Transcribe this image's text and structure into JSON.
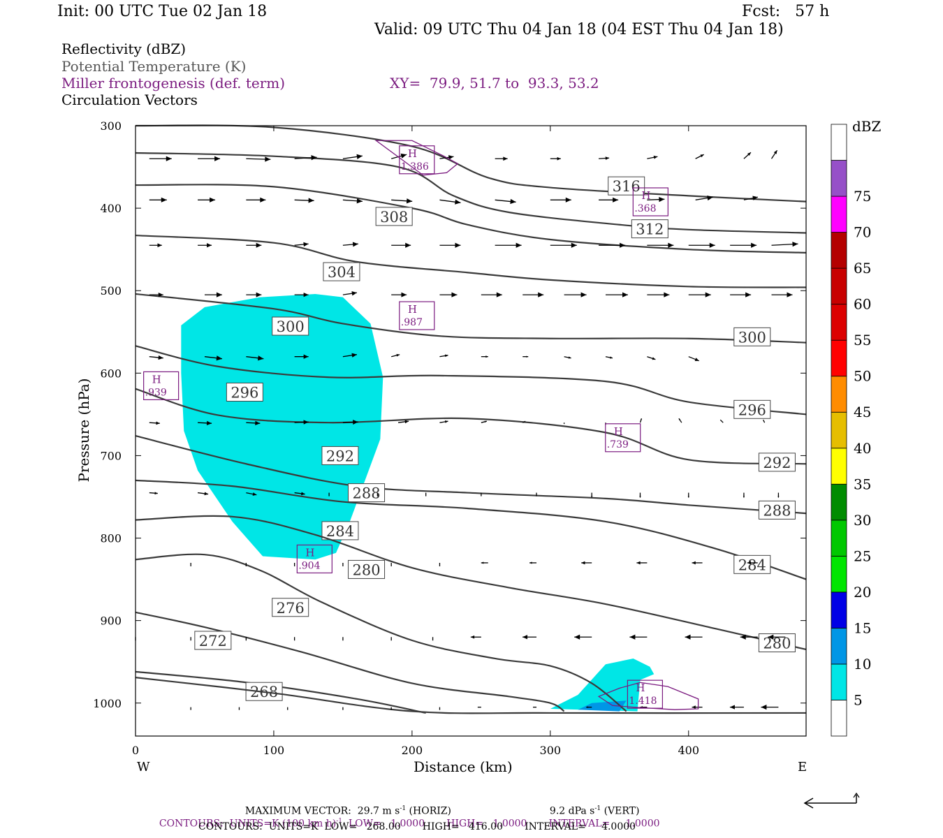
{
  "header": {
    "init": "Init: 00 UTC Tue 02 Jan 18",
    "fcst": "Fcst:   57 h",
    "valid": "Valid: 09 UTC Thu 04 Jan 18 (04 EST Thu 04 Jan 18)"
  },
  "fields": {
    "reflectivity": "Reflectivity (dBZ)",
    "theta": "Potential Temperature (K)",
    "frontogenesis": "Miller frontogenesis (def. term)",
    "xy": "XY=  79.9, 51.7 to  93.3, 53.2",
    "vectors": "Circulation Vectors"
  },
  "colors": {
    "theta_line": "#3a3a3a",
    "fronto": "#7a1a7f",
    "refl_5": "#00e6e6",
    "refl_10": "#0096e6"
  },
  "chart_data": {
    "type": "cross-section",
    "xlabel": "Distance (km)",
    "ylabel": "Pressure (hPa)",
    "x_ticks": [
      0,
      100,
      200,
      300,
      400
    ],
    "y_ticks": [
      300,
      400,
      500,
      600,
      700,
      800,
      900,
      1000
    ],
    "xlim": [
      0,
      485
    ],
    "ylim": [
      1040,
      300
    ],
    "x_end_labels": {
      "left": "W",
      "right": "E"
    },
    "colorbar": {
      "title": "dBZ",
      "levels": [
        5,
        10,
        15,
        20,
        25,
        30,
        35,
        40,
        45,
        50,
        55,
        60,
        65,
        70,
        75
      ],
      "colors": [
        "#00e6e6",
        "#0096e6",
        "#0000e6",
        "#00e600",
        "#00c800",
        "#008c00",
        "#ffff00",
        "#e6be00",
        "#ff8c00",
        "#ff0000",
        "#dc0000",
        "#c80000",
        "#b40000",
        "#ff00ff",
        "#9650c8"
      ],
      "top_color": "#ffffff",
      "bottom_color": "#ffffff"
    },
    "theta_contours": [
      {
        "label": "316",
        "label_at": [
          355,
          373
        ],
        "points": [
          [
            0,
            300
          ],
          [
            100,
            302
          ],
          [
            200,
            325
          ],
          [
            255,
            363
          ],
          [
            300,
            375
          ],
          [
            400,
            385
          ],
          [
            485,
            392
          ]
        ]
      },
      {
        "label": "312",
        "label_at": [
          372,
          425
        ],
        "points": [
          [
            0,
            333
          ],
          [
            100,
            337
          ],
          [
            190,
            350
          ],
          [
            230,
            385
          ],
          [
            270,
            405
          ],
          [
            350,
            420
          ],
          [
            400,
            426
          ],
          [
            485,
            430
          ]
        ]
      },
      {
        "label": "308",
        "label_at": [
          187,
          410
        ],
        "points": [
          [
            0,
            372
          ],
          [
            100,
            374
          ],
          [
            200,
            400
          ],
          [
            240,
            420
          ],
          [
            300,
            438
          ],
          [
            400,
            450
          ],
          [
            485,
            454
          ]
        ]
      },
      {
        "label": "304",
        "label_at": [
          149,
          477
        ],
        "points": [
          [
            0,
            433
          ],
          [
            100,
            442
          ],
          [
            160,
            465
          ],
          [
            240,
            478
          ],
          [
            300,
            487
          ],
          [
            400,
            495
          ],
          [
            485,
            496
          ]
        ]
      },
      {
        "label": "300",
        "label_at": [
          112,
          543
        ],
        "labels_extra": [
          [
            446,
            556
          ]
        ],
        "points": [
          [
            0,
            504
          ],
          [
            100,
            522
          ],
          [
            150,
            540
          ],
          [
            220,
            555
          ],
          [
            300,
            558
          ],
          [
            400,
            558
          ],
          [
            485,
            563
          ]
        ]
      },
      {
        "label": "296",
        "label_at": [
          79,
          623
        ],
        "labels_extra": [
          [
            446,
            644
          ]
        ],
        "points": [
          [
            0,
            567
          ],
          [
            60,
            592
          ],
          [
            140,
            605
          ],
          [
            220,
            603
          ],
          [
            340,
            610
          ],
          [
            400,
            635
          ],
          [
            485,
            650
          ]
        ]
      },
      {
        "label": "292",
        "label_at": [
          148,
          700
        ],
        "labels_extra": [
          [
            464,
            708
          ]
        ],
        "points": [
          [
            0,
            619
          ],
          [
            60,
            651
          ],
          [
            140,
            660
          ],
          [
            240,
            655
          ],
          [
            340,
            672
          ],
          [
            400,
            705
          ],
          [
            485,
            710
          ]
        ]
      },
      {
        "label": "288",
        "label_at": [
          167,
          745
        ],
        "labels_extra": [
          [
            464,
            766
          ]
        ],
        "points": [
          [
            0,
            676
          ],
          [
            80,
            710
          ],
          [
            160,
            737
          ],
          [
            240,
            745
          ],
          [
            340,
            752
          ],
          [
            400,
            760
          ],
          [
            485,
            770
          ]
        ]
      },
      {
        "label": "284",
        "label_at": [
          148,
          791
        ],
        "labels_extra": [
          [
            446,
            832
          ]
        ],
        "points": [
          [
            0,
            730
          ],
          [
            70,
            737
          ],
          [
            150,
            756
          ],
          [
            240,
            764
          ],
          [
            340,
            780
          ],
          [
            420,
            813
          ],
          [
            485,
            850
          ]
        ]
      },
      {
        "label": "280",
        "label_at": [
          167,
          838
        ],
        "labels_extra": [
          [
            464,
            927
          ]
        ],
        "points": [
          [
            0,
            778
          ],
          [
            70,
            774
          ],
          [
            130,
            796
          ],
          [
            200,
            836
          ],
          [
            270,
            860
          ],
          [
            340,
            880
          ],
          [
            420,
            910
          ],
          [
            485,
            935
          ]
        ]
      },
      {
        "label": "276",
        "label_at": [
          112,
          884
        ],
        "points": [
          [
            0,
            826
          ],
          [
            50,
            820
          ],
          [
            90,
            839
          ],
          [
            135,
            878
          ],
          [
            200,
            924
          ],
          [
            260,
            946
          ],
          [
            300,
            955
          ],
          [
            330,
            976
          ],
          [
            355,
            1010
          ]
        ]
      },
      {
        "label": "272",
        "label_at": [
          56,
          924
        ],
        "points": [
          [
            0,
            890
          ],
          [
            50,
            908
          ],
          [
            120,
            938
          ],
          [
            200,
            976
          ],
          [
            270,
            992
          ],
          [
            300,
            1000
          ],
          [
            310,
            1010
          ]
        ]
      },
      {
        "label": "268",
        "label_at": [
          93,
          986
        ],
        "points": [
          [
            0,
            962
          ],
          [
            80,
            975
          ],
          [
            160,
            995
          ],
          [
            210,
            1012
          ]
        ]
      },
      {
        "label": "",
        "points": [
          [
            0,
            969
          ],
          [
            100,
            988
          ],
          [
            200,
            1010
          ],
          [
            300,
            1012
          ],
          [
            485,
            1012
          ]
        ]
      }
    ],
    "reflectivity_areas": [
      {
        "level": 5,
        "points": [
          [
            33,
            542
          ],
          [
            50,
            520
          ],
          [
            90,
            508
          ],
          [
            130,
            504
          ],
          [
            150,
            508
          ],
          [
            170,
            540
          ],
          [
            179,
            605
          ],
          [
            177,
            680
          ],
          [
            155,
            780
          ],
          [
            145,
            818
          ],
          [
            130,
            826
          ],
          [
            92,
            822
          ],
          [
            70,
            780
          ],
          [
            45,
            718
          ],
          [
            35,
            670
          ],
          [
            33,
            600
          ]
        ]
      },
      {
        "level": 5,
        "points": [
          [
            300,
            1007
          ],
          [
            320,
            990
          ],
          [
            340,
            953
          ],
          [
            360,
            946
          ],
          [
            372,
            956
          ],
          [
            375,
            965
          ],
          [
            365,
            972
          ],
          [
            363,
            1010
          ]
        ]
      },
      {
        "level": 10,
        "points": [
          [
            320,
            1008
          ],
          [
            330,
            1000
          ],
          [
            355,
            997
          ],
          [
            350,
            1010
          ]
        ]
      }
    ],
    "frontogenesis_maxima": [
      {
        "label": "H",
        "value": "1.386",
        "at": [
          203,
          343
        ],
        "outline": [
          [
            174,
            318
          ],
          [
            200,
            318
          ],
          [
            222,
            336
          ],
          [
            233,
            346
          ],
          [
            225,
            357
          ],
          [
            208,
            360
          ]
        ]
      },
      {
        "label": "H",
        "value": ".368",
        "at": [
          372,
          394
        ]
      },
      {
        "label": "H",
        "value": ".987",
        "at": [
          203,
          532
        ]
      },
      {
        "label": "H",
        "value": ".939",
        "at": [
          18,
          617
        ]
      },
      {
        "label": "H",
        "value": ".739",
        "at": [
          352,
          680
        ]
      },
      {
        "label": "H",
        "value": ".904",
        "at": [
          129,
          827
        ]
      },
      {
        "label": "H",
        "value": "1.418",
        "at": [
          368,
          991
        ],
        "outline": [
          [
            335,
            992
          ],
          [
            350,
            982
          ],
          [
            365,
            975
          ],
          [
            385,
            980
          ],
          [
            407,
            995
          ],
          [
            407,
            1007
          ],
          [
            390,
            1008
          ],
          [
            360,
            1005
          ],
          [
            345,
            1003
          ]
        ]
      }
    ],
    "vectors": [
      [
        [
          0,
          344
        ],
        [
          45,
          345
        ],
        [
          0,
          342
        ],
        [
          65,
          342
        ],
        [
          0,
          342
        ],
        [
          65,
          342
        ],
        [
          0,
          342
        ],
        [
          60,
          343
        ],
        [
          0,
          342
        ],
        [
          55,
          343
        ],
        [
          0,
          342
        ],
        [
          45,
          342
        ],
        [
          0,
          342
        ],
        [
          50,
          343
        ],
        [
          0,
          342
        ],
        [
          45,
          343
        ],
        [
          0,
          342
        ],
        [
          45,
          341
        ],
        [
          0,
          342
        ],
        [
          40,
          343
        ],
        [
          0,
          342
        ],
        [
          35,
          343
        ],
        [
          0,
          342
        ],
        [
          30,
          332
        ],
        [
          0,
          342
        ],
        [
          20,
          322
        ],
        [
          0,
          342
        ],
        [
          15,
          318
        ]
      ],
      [
        [
          0,
          390
        ],
        [
          40,
          390
        ],
        [
          0,
          390
        ],
        [
          40,
          390
        ],
        [
          0,
          390
        ],
        [
          35,
          391
        ],
        [
          0,
          390
        ],
        [
          40,
          393
        ],
        [
          0,
          390
        ],
        [
          45,
          396
        ],
        [
          0,
          390
        ],
        [
          40,
          400
        ],
        [
          0,
          390
        ],
        [
          40,
          405
        ],
        [
          0,
          390
        ],
        [
          55,
          403
        ],
        [
          0,
          390
        ],
        [
          55,
          399
        ],
        [
          0,
          390
        ],
        [
          45,
          400
        ],
        [
          0,
          390
        ],
        [
          45,
          395
        ],
        [
          0,
          390
        ],
        [
          20,
          385
        ],
        [
          0,
          390
        ],
        [
          15,
          382
        ]
      ]
    ],
    "max_vector": "MAXIMUM VECTOR:  29.7 m s⁻¹ (HORIZ)          9.2 dPa s⁻¹ (VERT)"
  },
  "footer": {
    "line1a": "MAXIMUM VECTOR:  29.7 m s",
    "line1b": " (HORIZ)",
    "line1c": "9.2 dPa s",
    "line1d": " (VERT)",
    "line2a": "CONTOURS:  UNITS=K (100 km h)",
    "line2b": "  LOW=   1.0000       HIGH=   1.0000       INTERVAL=     1.0000",
    "line3": "CONTOURS:  UNITS=K  LOW=   268.00       HIGH=   416.00       INTERVAL=     4.0000"
  }
}
